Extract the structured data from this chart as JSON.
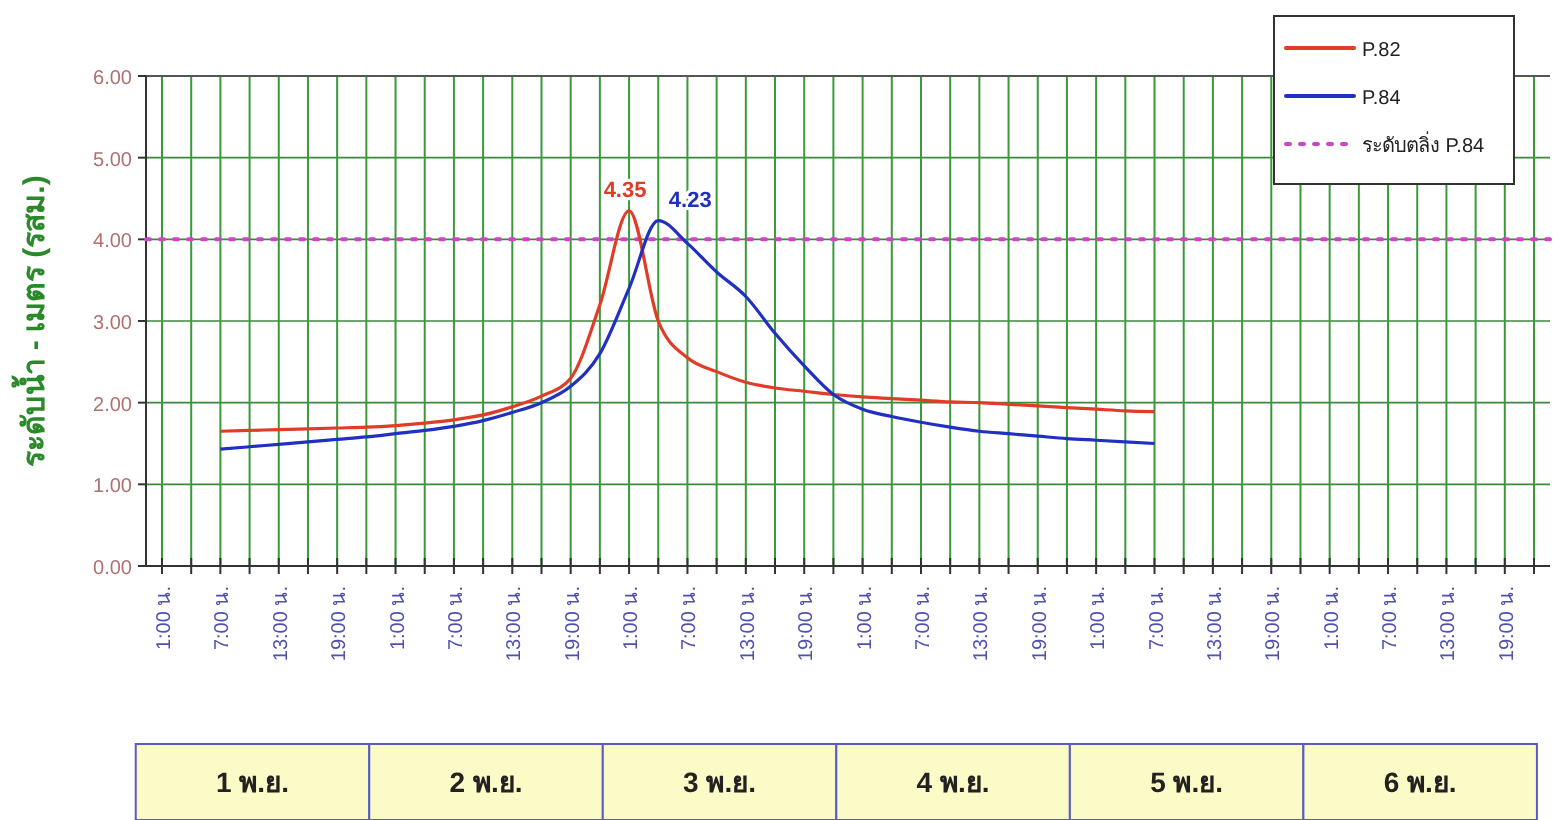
{
  "chart_data": {
    "type": "line",
    "ylabel": "ระดับน้ำ - เมตร (รสม.)",
    "categories": [
      "1:00 น.",
      null,
      "7:00 น.",
      null,
      "13:00 น.",
      null,
      "19:00 น.",
      null,
      "1:00 น.",
      null,
      "7:00 น.",
      null,
      "13:00 น.",
      null,
      "19:00 น.",
      null,
      "1:00 น.",
      null,
      "7:00 น.",
      null,
      "13:00 น.",
      null,
      "19:00 น.",
      null,
      "1:00 น.",
      null,
      "7:00 น.",
      null,
      "13:00 น.",
      null,
      "19:00 น.",
      null,
      "1:00 น.",
      null,
      "7:00 น.",
      null,
      "13:00 น.",
      null,
      "19:00 น.",
      null,
      "1:00 น.",
      null,
      "7:00 น.",
      null,
      "13:00 น.",
      null,
      "19:00 น.",
      null
    ],
    "ylim": [
      0,
      6
    ],
    "yticks": [
      {
        "value": 0,
        "label": "0.00"
      },
      {
        "value": 1,
        "label": "1.00"
      },
      {
        "value": 2,
        "label": "2.00"
      },
      {
        "value": 3,
        "label": "3.00"
      },
      {
        "value": 4,
        "label": "4.00"
      },
      {
        "value": 5,
        "label": "5.00"
      },
      {
        "value": 6,
        "label": "6.00"
      }
    ],
    "grid": true,
    "legend": "top right",
    "marker": "none",
    "line_style": "solid",
    "series": [
      {
        "name": "P.82",
        "color": "#e03c28",
        "values": [
          null,
          null,
          1.65,
          1.66,
          1.67,
          1.68,
          1.69,
          1.7,
          1.72,
          1.75,
          1.79,
          1.85,
          1.95,
          2.08,
          2.3,
          3.2,
          4.35,
          3.0,
          2.55,
          2.38,
          2.25,
          2.18,
          2.14,
          2.1,
          2.07,
          2.05,
          2.03,
          2.01,
          2.0,
          1.98,
          1.96,
          1.94,
          1.92,
          1.9,
          1.89,
          null,
          null,
          null,
          null,
          null,
          null,
          null,
          null,
          null,
          null,
          null,
          null,
          null
        ],
        "value_labels": [
          null,
          null,
          null,
          null,
          null,
          null,
          null,
          null,
          null,
          null,
          null,
          null,
          null,
          null,
          null,
          null,
          "4.35",
          null,
          null,
          null,
          null,
          null,
          null,
          null,
          null,
          null,
          null,
          null,
          null,
          null,
          null,
          null,
          null,
          null,
          null,
          null,
          null,
          null,
          null,
          null,
          null,
          null,
          null,
          null,
          null,
          null,
          null,
          null
        ]
      },
      {
        "name": "P.84",
        "color": "#2030c0",
        "values": [
          null,
          null,
          1.43,
          1.46,
          1.49,
          1.52,
          1.55,
          1.58,
          1.62,
          1.66,
          1.71,
          1.78,
          1.88,
          2.0,
          2.2,
          2.6,
          3.4,
          4.23,
          3.95,
          3.6,
          3.3,
          2.85,
          2.45,
          2.1,
          1.92,
          1.83,
          1.76,
          1.7,
          1.65,
          1.62,
          1.59,
          1.56,
          1.54,
          1.52,
          1.5,
          null,
          null,
          null,
          null,
          null,
          null,
          null,
          null,
          null,
          null,
          null,
          null,
          null
        ],
        "value_labels": [
          null,
          null,
          null,
          null,
          null,
          null,
          null,
          null,
          null,
          null,
          null,
          null,
          null,
          null,
          null,
          null,
          null,
          "4.23",
          null,
          null,
          null,
          null,
          null,
          null,
          null,
          null,
          null,
          null,
          null,
          null,
          null,
          null,
          null,
          null,
          null,
          null,
          null,
          null,
          null,
          null,
          null,
          null,
          null,
          null,
          null,
          null,
          null,
          null
        ]
      }
    ],
    "ref_lines": [
      {
        "axis": "y",
        "value": 4,
        "label": "ระดับตลิ่ง P.84",
        "color": "#cc44cc",
        "line_style": "dotted"
      }
    ],
    "annotations": [
      "1 พ.ย.",
      "2 พ.ย.",
      "3 พ.ย.",
      "4 พ.ย.",
      "5 พ.ย.",
      "6 พ.ย."
    ]
  }
}
